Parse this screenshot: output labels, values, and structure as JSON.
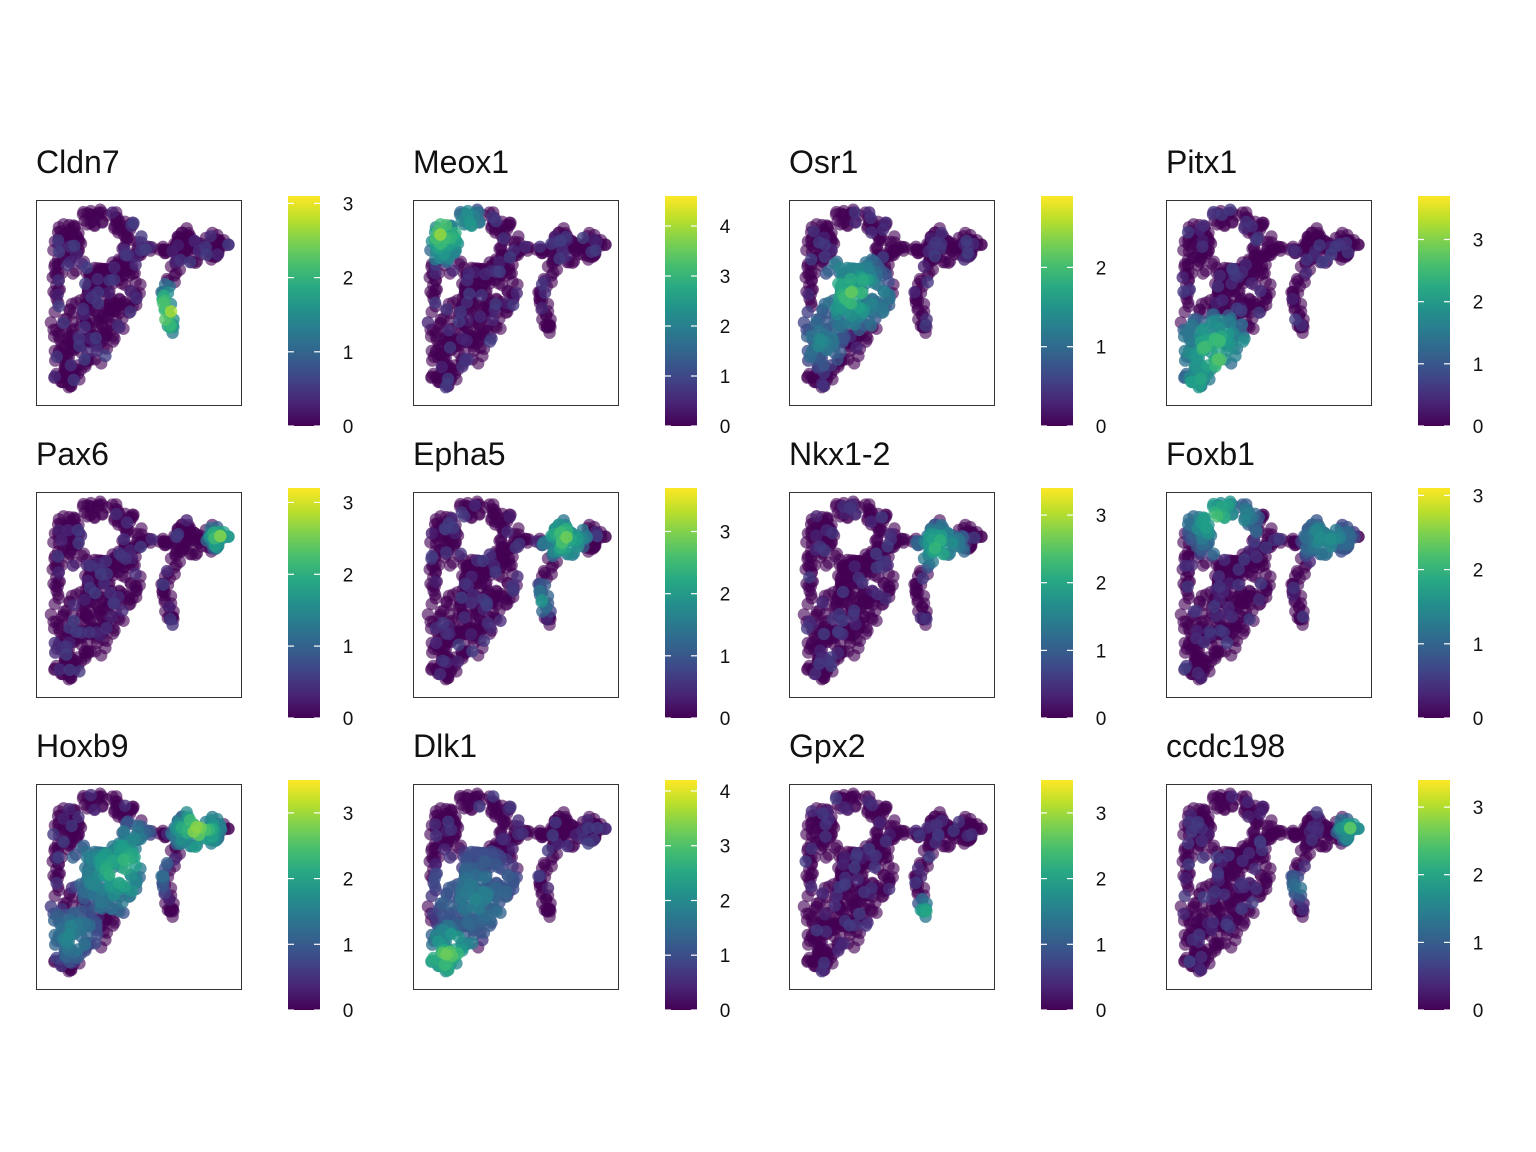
{
  "chart_data": [
    {
      "type": "scatter",
      "title": "Cldn7",
      "colorscale": "viridis",
      "colorbar_ticks": [
        "0",
        "1",
        "2",
        "3"
      ],
      "color_max": 3.1,
      "hotspots": [
        [
          0.66,
          0.55,
          0.15,
          0.95
        ]
      ]
    },
    {
      "type": "scatter",
      "title": "Meox1",
      "colorscale": "viridis",
      "colorbar_ticks": [
        "0",
        "1",
        "2",
        "3",
        "4"
      ],
      "color_max": 4.6,
      "hotspots": [
        [
          0.1,
          0.14,
          0.16,
          0.9
        ],
        [
          0.2,
          0.1,
          0.14,
          0.75
        ]
      ]
    },
    {
      "type": "scatter",
      "title": "Osr1",
      "colorscale": "viridis",
      "colorbar_ticks": [
        "0",
        "1",
        "2"
      ],
      "color_max": 2.9,
      "hotspots": [
        [
          0.3,
          0.45,
          0.2,
          0.8
        ],
        [
          0.12,
          0.7,
          0.14,
          0.55
        ]
      ]
    },
    {
      "type": "scatter",
      "title": "Pitx1",
      "colorscale": "viridis",
      "colorbar_ticks": [
        "0",
        "1",
        "2",
        "3"
      ],
      "color_max": 3.7,
      "hotspots": [
        [
          0.22,
          0.75,
          0.2,
          0.85
        ],
        [
          0.12,
          0.9,
          0.1,
          0.7
        ]
      ]
    },
    {
      "type": "scatter",
      "title": "Pax6",
      "colorscale": "viridis",
      "colorbar_ticks": [
        "0",
        "1",
        "2",
        "3"
      ],
      "color_max": 3.2,
      "hotspots": [
        [
          0.92,
          0.2,
          0.07,
          0.9
        ]
      ]
    },
    {
      "type": "scatter",
      "title": "Epha5",
      "colorscale": "viridis",
      "colorbar_ticks": [
        "0",
        "1",
        "2",
        "3"
      ],
      "color_max": 3.7,
      "hotspots": [
        [
          0.75,
          0.2,
          0.12,
          0.85
        ],
        [
          0.64,
          0.52,
          0.08,
          0.6
        ]
      ]
    },
    {
      "type": "scatter",
      "title": "Nkx1-2",
      "colorscale": "viridis",
      "colorbar_ticks": [
        "0",
        "1",
        "2",
        "3"
      ],
      "color_max": 3.4,
      "hotspots": [
        [
          0.75,
          0.25,
          0.13,
          0.8
        ]
      ]
    },
    {
      "type": "scatter",
      "title": "Foxb1",
      "colorscale": "viridis",
      "colorbar_ticks": [
        "0",
        "1",
        "2",
        "3"
      ],
      "color_max": 3.1,
      "hotspots": [
        [
          0.25,
          0.1,
          0.2,
          0.75
        ],
        [
          0.8,
          0.2,
          0.15,
          0.6
        ]
      ]
    },
    {
      "type": "scatter",
      "title": "Hoxb9",
      "colorscale": "viridis",
      "colorbar_ticks": [
        "0",
        "1",
        "2",
        "3"
      ],
      "color_max": 3.5,
      "hotspots": [
        [
          0.8,
          0.2,
          0.14,
          0.9
        ],
        [
          0.4,
          0.4,
          0.25,
          0.75
        ],
        [
          0.15,
          0.75,
          0.15,
          0.55
        ]
      ]
    },
    {
      "type": "scatter",
      "title": "Dlk1",
      "colorscale": "viridis",
      "colorbar_ticks": [
        "0",
        "1",
        "2",
        "3",
        "4"
      ],
      "color_max": 4.2,
      "hotspots": [
        [
          0.15,
          0.85,
          0.15,
          0.9
        ],
        [
          0.3,
          0.55,
          0.25,
          0.5
        ]
      ]
    },
    {
      "type": "scatter",
      "title": "Gpx2",
      "colorscale": "viridis",
      "colorbar_ticks": [
        "0",
        "1",
        "2",
        "3"
      ],
      "color_max": 3.5,
      "hotspots": [
        [
          0.67,
          0.62,
          0.06,
          0.7
        ]
      ]
    },
    {
      "type": "scatter",
      "title": "ccdc198",
      "colorscale": "viridis",
      "colorbar_ticks": [
        "0",
        "1",
        "2",
        "3"
      ],
      "color_max": 3.4,
      "hotspots": [
        [
          0.92,
          0.2,
          0.07,
          0.8
        ],
        [
          0.65,
          0.5,
          0.08,
          0.45
        ]
      ]
    }
  ]
}
